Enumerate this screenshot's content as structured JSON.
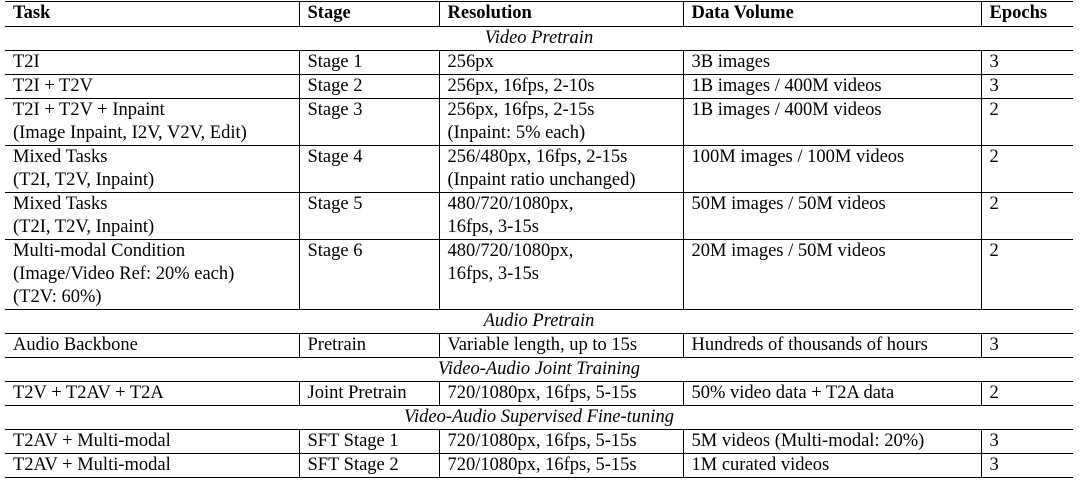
{
  "table": {
    "headers": [
      "Task",
      "Stage",
      "Resolution",
      "Data Volume",
      "Epochs"
    ],
    "sections": [
      {
        "title": "Video Pretrain",
        "rows": [
          {
            "task": [
              "T2I"
            ],
            "stage": "Stage 1",
            "resolution": [
              "256px"
            ],
            "volume": "3B images",
            "epochs": "3"
          },
          {
            "task": [
              "T2I + T2V"
            ],
            "stage": "Stage 2",
            "resolution": [
              "256px, 16fps, 2-10s"
            ],
            "volume": "1B images / 400M videos",
            "epochs": "3"
          },
          {
            "task": [
              "T2I + T2V + Inpaint",
              "(Image Inpaint, I2V, V2V, Edit)"
            ],
            "stage": "Stage 3",
            "resolution": [
              "256px, 16fps, 2-15s",
              "(Inpaint: 5% each)"
            ],
            "volume": "1B images / 400M videos",
            "epochs": "2"
          },
          {
            "task": [
              "Mixed Tasks",
              "(T2I, T2V, Inpaint)"
            ],
            "stage": "Stage 4",
            "resolution": [
              "256/480px, 16fps, 2-15s",
              "(Inpaint ratio unchanged)"
            ],
            "volume": "100M images / 100M videos",
            "epochs": "2"
          },
          {
            "task": [
              "Mixed Tasks",
              "(T2I, T2V, Inpaint)"
            ],
            "stage": "Stage 5",
            "resolution": [
              "480/720/1080px,",
              "16fps, 3-15s"
            ],
            "volume": "50M images / 50M videos",
            "epochs": "2"
          },
          {
            "task": [
              "Multi-modal Condition",
              "(Image/Video Ref: 20% each)",
              "(T2V: 60%)"
            ],
            "stage": "Stage 6",
            "resolution": [
              "480/720/1080px,",
              "16fps, 3-15s"
            ],
            "volume": "20M images / 50M videos",
            "epochs": "2"
          }
        ]
      },
      {
        "title": "Audio Pretrain",
        "rows": [
          {
            "task": [
              "Audio Backbone"
            ],
            "stage": "Pretrain",
            "resolution": [
              "Variable length, up to 15s"
            ],
            "volume": "Hundreds of thousands of hours",
            "epochs": "3"
          }
        ]
      },
      {
        "title": "Video-Audio Joint Training",
        "rows": [
          {
            "task": [
              "T2V + T2AV + T2A"
            ],
            "stage": "Joint Pretrain",
            "resolution": [
              "720/1080px, 16fps, 5-15s"
            ],
            "volume": "50% video data + T2A data",
            "epochs": "2"
          }
        ]
      },
      {
        "title": "Video-Audio Supervised Fine-tuning",
        "rows": [
          {
            "task": [
              "T2AV + Multi-modal"
            ],
            "stage": "SFT Stage 1",
            "resolution": [
              "720/1080px, 16fps, 5-15s"
            ],
            "volume": "5M videos (Multi-modal: 20%)",
            "epochs": "3"
          },
          {
            "task": [
              "T2AV + Multi-modal"
            ],
            "stage": "SFT Stage 2",
            "resolution": [
              "720/1080px, 16fps, 5-15s"
            ],
            "volume": "1M curated videos",
            "epochs": "3"
          }
        ]
      }
    ]
  }
}
